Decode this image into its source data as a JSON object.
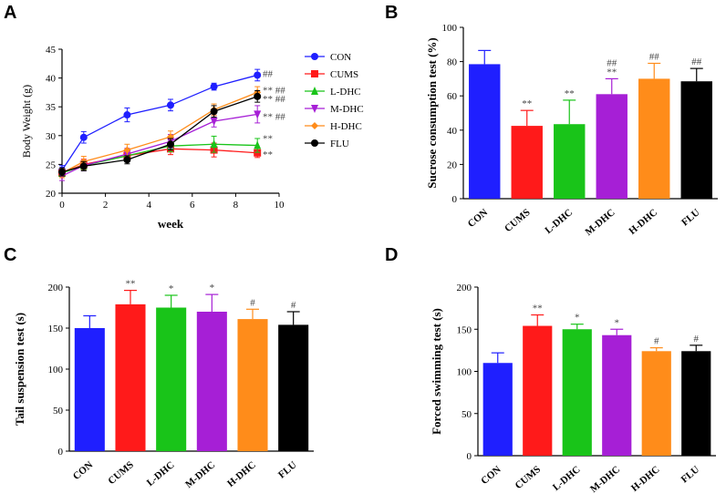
{
  "panels": {
    "A": "A",
    "B": "B",
    "C": "C",
    "D": "D"
  },
  "colors": {
    "CON": "#1f1fff",
    "CUMS": "#ff1a1a",
    "L-DHC": "#19c419",
    "M-DHC": "#a61fd6",
    "H-DHC": "#ff8c1a",
    "FLU": "#000000"
  },
  "chart_data": [
    {
      "id": "A",
      "type": "line",
      "title": "",
      "xlabel": "week",
      "ylabel": "Body Weight (g)",
      "x": [
        0,
        1,
        3,
        5,
        7,
        9
      ],
      "xlim": [
        0,
        10
      ],
      "ylim": [
        20,
        45
      ],
      "xticks": [
        0,
        2,
        4,
        6,
        8,
        10
      ],
      "yticks": [
        20,
        25,
        30,
        35,
        40,
        45
      ],
      "series": [
        {
          "name": "CON",
          "values": [
            24,
            29.7,
            33.6,
            35.3,
            38.5,
            40.5
          ],
          "err": [
            0.8,
            1.0,
            1.2,
            1.0,
            0.6,
            1.0
          ],
          "marker": "circle",
          "annotation": "##"
        },
        {
          "name": "CUMS",
          "values": [
            23.5,
            25,
            26.5,
            27.7,
            27.5,
            27
          ],
          "err": [
            0.8,
            0.9,
            0.8,
            1.0,
            1.2,
            0.8
          ],
          "marker": "square",
          "annotation": "**"
        },
        {
          "name": "L-DHC",
          "values": [
            23.5,
            24.8,
            26.5,
            28.2,
            28.5,
            28.3
          ],
          "err": [
            0.8,
            0.8,
            0.8,
            1.0,
            1.4,
            1.2
          ],
          "marker": "triangle-up",
          "annotation": "**"
        },
        {
          "name": "M-DHC",
          "values": [
            23,
            24.8,
            26.8,
            29,
            32.5,
            33.7
          ],
          "err": [
            0.8,
            0.9,
            1.0,
            1.2,
            1.0,
            1.5
          ],
          "marker": "triangle-down",
          "annotation": "** ##"
        },
        {
          "name": "H-DHC",
          "values": [
            23.5,
            25.5,
            27.5,
            29.8,
            34.5,
            37.5
          ],
          "err": [
            0.8,
            0.9,
            1.0,
            1.0,
            1.0,
            1.0
          ],
          "marker": "diamond",
          "annotation": "** ##"
        },
        {
          "name": "FLU",
          "values": [
            23.7,
            24.7,
            25.8,
            28.5,
            34.2,
            36.8
          ],
          "err": [
            0.7,
            0.8,
            0.7,
            1.0,
            1.0,
            1.0
          ],
          "marker": "circle",
          "annotation": "** ##"
        }
      ]
    },
    {
      "id": "B",
      "type": "bar",
      "title": "",
      "xlabel": "",
      "ylabel": "Sucrose consumption test (%)",
      "categories": [
        "CON",
        "CUMS",
        "L-DHC",
        "M-DHC",
        "H-DHC",
        "FLU"
      ],
      "values": [
        78.5,
        42.5,
        43.5,
        61,
        70,
        68.5
      ],
      "err": [
        8,
        9,
        14,
        9,
        9,
        7.5
      ],
      "annotations": [
        "",
        "**",
        "**",
        "##\n**",
        "##",
        "##"
      ],
      "ylim": [
        0,
        100
      ],
      "yticks": [
        0,
        20,
        40,
        60,
        80,
        100
      ]
    },
    {
      "id": "C",
      "type": "bar",
      "title": "",
      "xlabel": "",
      "ylabel": "Tail suspension test (s)",
      "categories": [
        "CON",
        "CUMS",
        "L-DHC",
        "M-DHC",
        "H-DHC",
        "FLU"
      ],
      "values": [
        150,
        179,
        175,
        170,
        161,
        154
      ],
      "err": [
        15,
        17,
        15,
        21,
        12,
        16
      ],
      "annotations": [
        "",
        "**",
        "*",
        "*",
        "#",
        "#"
      ],
      "ylim": [
        0,
        200
      ],
      "yticks": [
        0,
        50,
        100,
        150,
        200
      ]
    },
    {
      "id": "D",
      "type": "bar",
      "title": "",
      "xlabel": "",
      "ylabel": "Forced swimming test (s)",
      "categories": [
        "CON",
        "CUMS",
        "L-DHC",
        "M-DHC",
        "H-DHC",
        "FLU"
      ],
      "values": [
        110,
        154,
        150,
        143,
        124,
        124
      ],
      "err": [
        12,
        13,
        6,
        7,
        4,
        7
      ],
      "annotations": [
        "",
        "**",
        "*",
        "*",
        "#",
        "#"
      ],
      "ylim": [
        0,
        200
      ],
      "yticks": [
        0,
        50,
        100,
        150,
        200
      ]
    }
  ]
}
